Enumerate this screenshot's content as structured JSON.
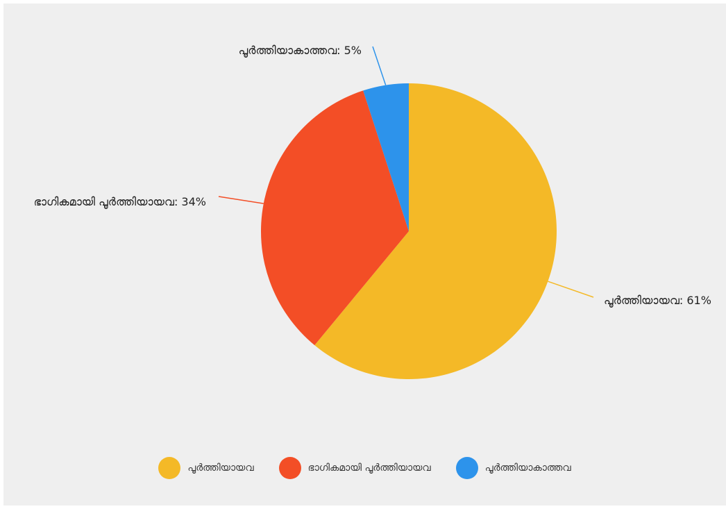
{
  "chart_data": {
    "type": "pie",
    "slices": [
      {
        "name": "പൂർത്തിയായവ",
        "value": 61,
        "color": "#f4b927",
        "label": "പൂർത്തിയായവ: 61%"
      },
      {
        "name": "ഭാഗികമായി പൂർത്തിയായവ",
        "value": 34,
        "color": "#f34e26",
        "label": "ഭാഗികമായി പൂർത്തിയായവ: 34%"
      },
      {
        "name": "പൂർത്തിയാകാത്തവ",
        "value": 5,
        "color": "#2d93eb",
        "label": "പൂർത്തിയാകാത്തവ: 5%"
      }
    ],
    "legend_position": "bottom",
    "start_angle": "top",
    "direction": "clockwise"
  },
  "legend": {
    "items": [
      {
        "label": "പൂർത്തിയായവ",
        "color": "#f4b927"
      },
      {
        "label": "ഭാഗികമായി പൂർത്തിയായവ",
        "color": "#f34e26"
      },
      {
        "label": "പൂർത്തിയാകാത്തവ",
        "color": "#2d93eb"
      }
    ]
  }
}
